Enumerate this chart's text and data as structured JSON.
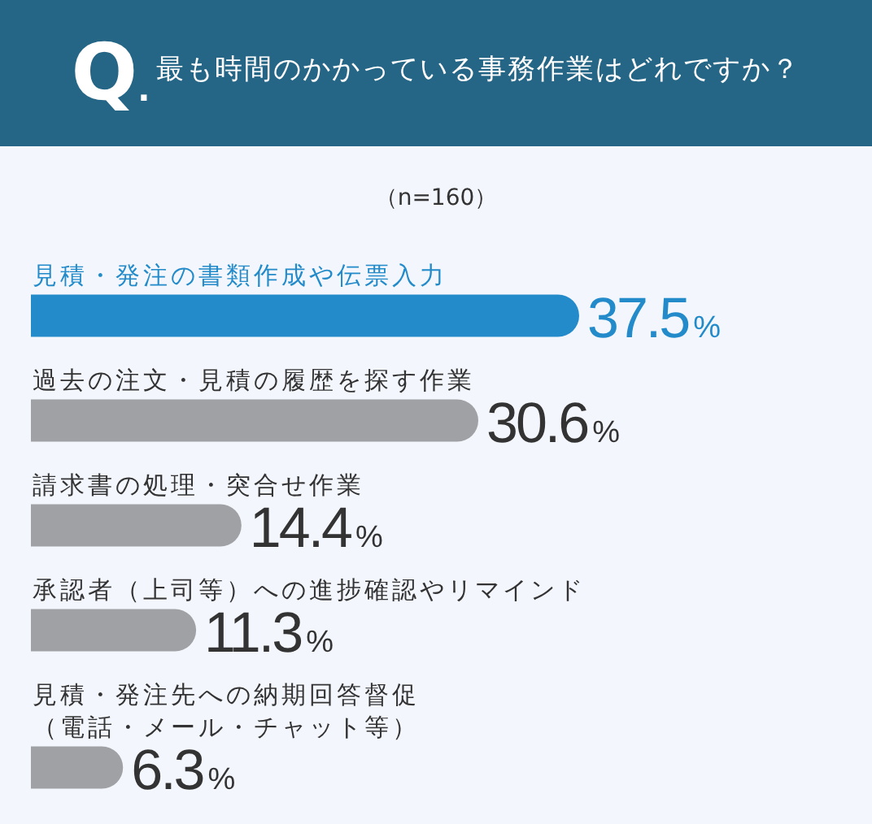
{
  "chart_data": {
    "type": "bar",
    "orientation": "horizontal",
    "title": "Q. 最も時間のかかっている事務作業はどれですか？",
    "subtitle": "（n=160）",
    "categories": [
      "見積・発注の書類作成や伝票入力",
      "過去の注文・見積の履歴を探す作業",
      "請求書の処理・突合せ作業",
      "承認者（上司等）への進捗確認やリマインド",
      "見積・発注先への納期回答督促（電話・メール・チャット等）"
    ],
    "values": [
      37.5,
      30.6,
      14.4,
      11.3,
      6.3
    ],
    "colors": [
      "#238bc9",
      "#a0a1a5",
      "#a0a1a5",
      "#a0a1a5",
      "#a0a1a5"
    ],
    "value_labels": [
      "37.5%",
      "30.6%",
      "14.4%",
      "11.3%",
      "6.3%"
    ]
  }
}
